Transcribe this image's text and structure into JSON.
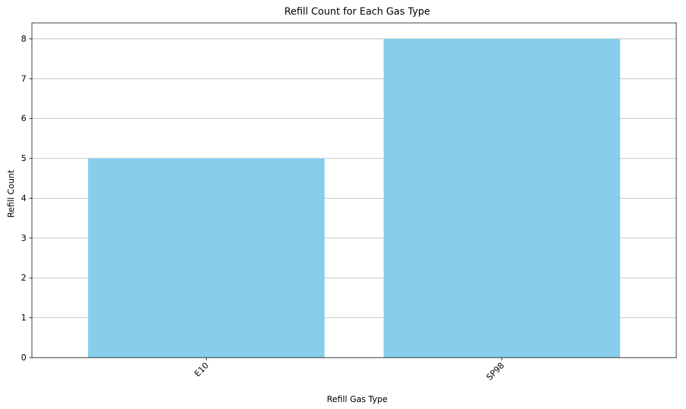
{
  "chart_data": {
    "type": "bar",
    "title": "Refill Count for Each Gas Type",
    "xlabel": "Refill Gas Type",
    "ylabel": "Refill Count",
    "categories": [
      "E10",
      "SP98"
    ],
    "values": [
      5,
      8
    ],
    "ylim": [
      0,
      8.4
    ],
    "yticks": [
      "0",
      "1",
      "2",
      "3",
      "4",
      "5",
      "6",
      "7",
      "8"
    ],
    "xtick_rotation": 45,
    "grid": "y",
    "bar_color": "#87CEEB",
    "grid_color": "#b0b0b0"
  }
}
